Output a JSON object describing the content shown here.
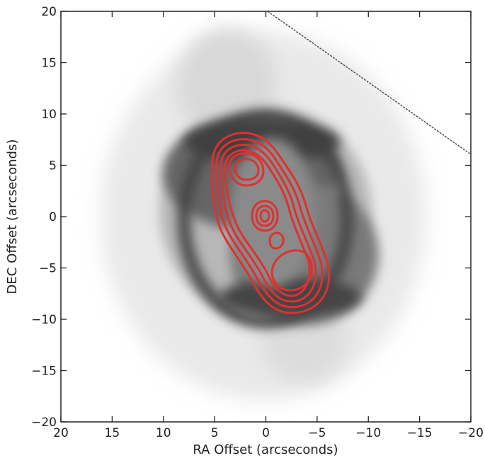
{
  "chart_data": {
    "type": "image-with-contours",
    "xlabel": "RA Offset (arcseconds)",
    "ylabel": "DEC Offset (arcseconds)",
    "xlim": [
      20,
      -20
    ],
    "ylim": [
      -20,
      20
    ],
    "x_ticks": [
      20,
      15,
      10,
      5,
      0,
      -5,
      -10,
      -15,
      -20
    ],
    "y_ticks": [
      20,
      15,
      10,
      5,
      0,
      -5,
      -10,
      -15,
      -20
    ],
    "x_tick_labels": [
      "20",
      "15",
      "10",
      "5",
      "0",
      "−5",
      "−10",
      "−15",
      "−20"
    ],
    "y_tick_labels": [
      "20",
      "15",
      "10",
      "5",
      "0",
      "−5",
      "−10",
      "−15",
      "−20"
    ],
    "grid": false,
    "image": {
      "description_colormap": "inverted grayscale",
      "features": [
        "central bipolar shell",
        "faint outer halo",
        "diagonal satellite streak"
      ]
    },
    "contours": {
      "color": "#e03030",
      "levels": 6,
      "peaks": [
        {
          "ra": 2.0,
          "dec": 4.5
        },
        {
          "ra": 0.0,
          "dec": 0.0
        },
        {
          "ra": -1.0,
          "dec": -2.3
        },
        {
          "ra": -3.0,
          "dec": -5.5
        }
      ]
    }
  }
}
